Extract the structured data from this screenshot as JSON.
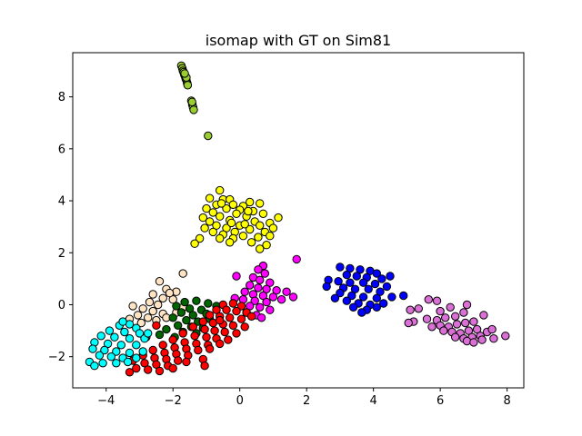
{
  "chart_data": {
    "type": "scatter",
    "title": "isomap with GT on Sim81",
    "xlabel": "",
    "ylabel": "",
    "xlim": [
      -5.0,
      8.5
    ],
    "ylim": [
      -3.2,
      9.7
    ],
    "xticks": [
      -4,
      -2,
      0,
      2,
      4,
      6,
      8
    ],
    "yticks": [
      -2,
      0,
      2,
      4,
      6,
      8
    ],
    "xtick_labels": [
      "−4",
      "−2",
      "0",
      "2",
      "4",
      "6",
      "8"
    ],
    "ytick_labels": [
      "−2",
      "0",
      "2",
      "4",
      "6",
      "8"
    ],
    "grid": false,
    "legend": "none",
    "series": [
      {
        "color": "#9acd32",
        "points": [
          [
            -1.75,
            9.2
          ],
          [
            -1.72,
            9.1
          ],
          [
            -1.7,
            9.0
          ],
          [
            -1.68,
            8.95
          ],
          [
            -1.66,
            8.85
          ],
          [
            -1.64,
            8.8
          ],
          [
            -1.62,
            8.7
          ],
          [
            -1.6,
            8.65
          ],
          [
            -1.58,
            8.55
          ],
          [
            -1.57,
            8.5
          ],
          [
            -1.6,
            8.75
          ],
          [
            -1.56,
            8.45
          ],
          [
            -1.65,
            8.9
          ],
          [
            -1.45,
            7.85
          ],
          [
            -1.42,
            7.7
          ],
          [
            -1.4,
            7.6
          ],
          [
            -1.38,
            7.5
          ],
          [
            -1.43,
            7.8
          ],
          [
            -0.95,
            6.5
          ]
        ]
      },
      {
        "color": "#ffff00",
        "points": [
          [
            -0.6,
            4.4
          ],
          [
            -0.9,
            4.1
          ],
          [
            -0.5,
            4.05
          ],
          [
            -0.3,
            4.05
          ],
          [
            0.6,
            3.9
          ],
          [
            0.3,
            3.95
          ],
          [
            -0.7,
            3.85
          ],
          [
            -0.2,
            3.85
          ],
          [
            0.1,
            3.8
          ],
          [
            -1.0,
            3.7
          ],
          [
            -0.4,
            3.7
          ],
          [
            0.0,
            3.65
          ],
          [
            0.4,
            3.6
          ],
          [
            -0.8,
            3.55
          ],
          [
            -0.1,
            3.5
          ],
          [
            0.7,
            3.5
          ],
          [
            -1.1,
            3.35
          ],
          [
            -0.6,
            3.4
          ],
          [
            0.2,
            3.4
          ],
          [
            1.15,
            3.35
          ],
          [
            -0.9,
            3.2
          ],
          [
            -0.3,
            3.25
          ],
          [
            0.45,
            3.2
          ],
          [
            0.9,
            3.15
          ],
          [
            -0.7,
            3.05
          ],
          [
            0.0,
            3.05
          ],
          [
            0.6,
            3.05
          ],
          [
            -1.05,
            2.95
          ],
          [
            -0.4,
            2.95
          ],
          [
            0.3,
            2.9
          ],
          [
            1.0,
            2.95
          ],
          [
            -0.8,
            2.8
          ],
          [
            -0.15,
            2.8
          ],
          [
            0.75,
            2.8
          ],
          [
            -0.5,
            2.7
          ],
          [
            0.1,
            2.65
          ],
          [
            0.55,
            2.6
          ],
          [
            -0.2,
            2.55
          ],
          [
            0.9,
            2.65
          ],
          [
            -0.6,
            2.55
          ],
          [
            0.35,
            2.4
          ],
          [
            -0.3,
            2.4
          ],
          [
            0.8,
            2.3
          ],
          [
            0.6,
            2.15
          ],
          [
            -1.2,
            2.55
          ],
          [
            -1.35,
            2.35
          ],
          [
            -0.55,
            3.9
          ],
          [
            0.25,
            3.6
          ],
          [
            -0.25,
            3.15
          ],
          [
            0.15,
            3.1
          ]
        ]
      },
      {
        "color": "#0000ff",
        "points": [
          [
            3.0,
            1.45
          ],
          [
            3.3,
            1.4
          ],
          [
            3.6,
            1.35
          ],
          [
            3.9,
            1.3
          ],
          [
            4.1,
            1.2
          ],
          [
            3.2,
            1.15
          ],
          [
            3.5,
            1.1
          ],
          [
            3.8,
            1.05
          ],
          [
            4.25,
            1.0
          ],
          [
            2.65,
            0.95
          ],
          [
            2.95,
            0.9
          ],
          [
            3.3,
            0.85
          ],
          [
            3.7,
            0.85
          ],
          [
            4.05,
            0.8
          ],
          [
            4.4,
            0.7
          ],
          [
            3.1,
            0.65
          ],
          [
            3.45,
            0.6
          ],
          [
            3.85,
            0.6
          ],
          [
            4.2,
            0.5
          ],
          [
            2.6,
            0.7
          ],
          [
            3.0,
            0.45
          ],
          [
            3.35,
            0.35
          ],
          [
            3.7,
            0.3
          ],
          [
            4.1,
            0.25
          ],
          [
            4.55,
            0.3
          ],
          [
            3.2,
            0.15
          ],
          [
            3.55,
            0.05
          ],
          [
            3.9,
            0.0
          ],
          [
            4.3,
            0.05
          ],
          [
            3.4,
            -0.1
          ],
          [
            3.8,
            -0.2
          ],
          [
            4.1,
            -0.1
          ],
          [
            3.65,
            -0.3
          ],
          [
            4.9,
            0.35
          ],
          [
            2.85,
            0.25
          ],
          [
            4.5,
            1.1
          ]
        ]
      },
      {
        "color": "#da70d6",
        "points": [
          [
            5.1,
            -0.2
          ],
          [
            5.35,
            -0.15
          ],
          [
            5.65,
            0.2
          ],
          [
            5.9,
            0.15
          ],
          [
            6.0,
            -0.25
          ],
          [
            6.3,
            -0.1
          ],
          [
            5.6,
            -0.55
          ],
          [
            5.9,
            -0.6
          ],
          [
            6.15,
            -0.5
          ],
          [
            6.45,
            -0.45
          ],
          [
            6.7,
            -0.3
          ],
          [
            5.75,
            -0.85
          ],
          [
            6.0,
            -0.8
          ],
          [
            6.25,
            -0.85
          ],
          [
            6.5,
            -0.75
          ],
          [
            6.75,
            -0.7
          ],
          [
            7.0,
            -0.65
          ],
          [
            6.1,
            -1.0
          ],
          [
            6.35,
            -1.05
          ],
          [
            6.6,
            -1.1
          ],
          [
            6.85,
            -1.0
          ],
          [
            7.1,
            -0.95
          ],
          [
            6.45,
            -1.25
          ],
          [
            6.7,
            -1.3
          ],
          [
            6.95,
            -1.25
          ],
          [
            7.2,
            -1.2
          ],
          [
            7.4,
            -1.05
          ],
          [
            7.55,
            -0.95
          ],
          [
            6.8,
            -1.4
          ],
          [
            7.0,
            -1.45
          ],
          [
            7.25,
            -1.35
          ],
          [
            7.95,
            -1.2
          ],
          [
            7.6,
            -1.3
          ],
          [
            5.2,
            -0.65
          ],
          [
            5.05,
            -0.7
          ],
          [
            6.8,
            0.0
          ],
          [
            7.3,
            -0.4
          ]
        ]
      },
      {
        "color": "#ff00ff",
        "points": [
          [
            0.7,
            1.5
          ],
          [
            0.55,
            1.35
          ],
          [
            0.75,
            1.2
          ],
          [
            1.7,
            1.75
          ],
          [
            -0.1,
            1.1
          ],
          [
            0.4,
            1.05
          ],
          [
            0.6,
            0.95
          ],
          [
            0.9,
            0.85
          ],
          [
            0.3,
            0.75
          ],
          [
            0.55,
            0.65
          ],
          [
            0.8,
            0.6
          ],
          [
            1.1,
            0.55
          ],
          [
            1.4,
            0.5
          ],
          [
            0.15,
            0.5
          ],
          [
            0.4,
            0.4
          ],
          [
            0.7,
            0.35
          ],
          [
            1.0,
            0.3
          ],
          [
            1.6,
            0.3
          ],
          [
            0.1,
            0.2
          ],
          [
            0.45,
            0.15
          ],
          [
            0.8,
            0.1
          ],
          [
            1.25,
            0.2
          ],
          [
            0.3,
            -0.05
          ],
          [
            0.6,
            -0.1
          ],
          [
            0.9,
            -0.2
          ],
          [
            0.2,
            -0.3
          ],
          [
            0.5,
            -0.4
          ],
          [
            -0.15,
            0.25
          ],
          [
            0.65,
            -0.5
          ]
        ]
      },
      {
        "color": "#ffe4c4",
        "points": [
          [
            -1.7,
            1.2
          ],
          [
            -2.4,
            0.9
          ],
          [
            -2.2,
            0.6
          ],
          [
            -1.9,
            0.5
          ],
          [
            -2.6,
            0.4
          ],
          [
            -2.3,
            0.25
          ],
          [
            -2.0,
            0.2
          ],
          [
            -2.7,
            0.1
          ],
          [
            -2.45,
            0.0
          ],
          [
            -3.2,
            -0.05
          ],
          [
            -2.9,
            -0.15
          ],
          [
            -2.6,
            -0.25
          ],
          [
            -2.3,
            -0.35
          ],
          [
            -3.05,
            -0.4
          ],
          [
            -2.75,
            -0.5
          ],
          [
            -2.5,
            -0.6
          ],
          [
            -2.2,
            -0.5
          ],
          [
            -3.3,
            -0.55
          ],
          [
            -2.95,
            -0.7
          ],
          [
            -1.7,
            -0.1
          ],
          [
            -1.9,
            -0.3
          ],
          [
            -2.1,
            0.45
          ]
        ]
      },
      {
        "color": "#006400",
        "points": [
          [
            -1.65,
            0.1
          ],
          [
            -1.3,
            0.15
          ],
          [
            -1.9,
            -0.05
          ],
          [
            -1.5,
            -0.15
          ],
          [
            -1.15,
            -0.2
          ],
          [
            -1.75,
            -0.3
          ],
          [
            -1.4,
            -0.4
          ],
          [
            -1.0,
            -0.35
          ],
          [
            -2.0,
            -0.5
          ],
          [
            -1.6,
            -0.6
          ],
          [
            -1.25,
            -0.65
          ],
          [
            -0.9,
            -0.55
          ],
          [
            -1.85,
            -0.8
          ],
          [
            -1.45,
            -0.85
          ],
          [
            -1.1,
            -0.9
          ],
          [
            -2.2,
            -0.95
          ],
          [
            -1.7,
            -1.05
          ],
          [
            -1.3,
            -1.1
          ],
          [
            -2.4,
            -1.15
          ],
          [
            -1.95,
            -1.25
          ],
          [
            -0.95,
            0.05
          ],
          [
            -0.7,
            -0.05
          ]
        ]
      },
      {
        "color": "#ff0000",
        "points": [
          [
            -0.5,
            0.0
          ],
          [
            -0.2,
            0.05
          ],
          [
            0.05,
            -0.05
          ],
          [
            -0.7,
            -0.2
          ],
          [
            -0.4,
            -0.2
          ],
          [
            -0.1,
            -0.25
          ],
          [
            0.2,
            -0.3
          ],
          [
            -0.9,
            -0.4
          ],
          [
            -0.6,
            -0.45
          ],
          [
            -0.3,
            -0.5
          ],
          [
            0.05,
            -0.55
          ],
          [
            0.35,
            -0.45
          ],
          [
            -1.1,
            -0.65
          ],
          [
            -0.8,
            -0.7
          ],
          [
            -0.5,
            -0.75
          ],
          [
            -0.2,
            -0.8
          ],
          [
            0.15,
            -0.85
          ],
          [
            -1.4,
            -0.85
          ],
          [
            -1.05,
            -0.95
          ],
          [
            -0.75,
            -1.0
          ],
          [
            -0.45,
            -1.05
          ],
          [
            -0.1,
            -1.1
          ],
          [
            -1.7,
            -1.1
          ],
          [
            -1.35,
            -1.2
          ],
          [
            -1.0,
            -1.25
          ],
          [
            -0.7,
            -1.3
          ],
          [
            -0.35,
            -1.35
          ],
          [
            -2.0,
            -1.35
          ],
          [
            -1.65,
            -1.45
          ],
          [
            -1.3,
            -1.5
          ],
          [
            -0.95,
            -1.55
          ],
          [
            -0.6,
            -1.5
          ],
          [
            -2.3,
            -1.55
          ],
          [
            -1.95,
            -1.65
          ],
          [
            -1.6,
            -1.7
          ],
          [
            -1.25,
            -1.75
          ],
          [
            -0.9,
            -1.7
          ],
          [
            -2.6,
            -1.75
          ],
          [
            -2.25,
            -1.85
          ],
          [
            -1.9,
            -1.9
          ],
          [
            -1.55,
            -1.95
          ],
          [
            -2.9,
            -1.95
          ],
          [
            -2.55,
            -2.05
          ],
          [
            -2.2,
            -2.1
          ],
          [
            -1.85,
            -2.15
          ],
          [
            -3.2,
            -2.15
          ],
          [
            -2.85,
            -2.25
          ],
          [
            -2.5,
            -2.3
          ],
          [
            -2.15,
            -2.35
          ],
          [
            -3.1,
            -2.45
          ],
          [
            -2.75,
            -2.5
          ],
          [
            -3.3,
            -2.6
          ],
          [
            -2.4,
            -2.55
          ],
          [
            -2.0,
            -2.45
          ],
          [
            -1.1,
            -2.1
          ],
          [
            -1.05,
            -2.35
          ],
          [
            -1.6,
            -2.2
          ],
          [
            -2.5,
            -0.8
          ],
          [
            -2.8,
            -1.25
          ],
          [
            -0.6,
            -0.6
          ]
        ]
      },
      {
        "color": "#00ffff",
        "points": [
          [
            -3.3,
            -0.75
          ],
          [
            -3.6,
            -0.8
          ],
          [
            -3.1,
            -0.9
          ],
          [
            -3.9,
            -1.0
          ],
          [
            -3.45,
            -1.05
          ],
          [
            -3.0,
            -1.1
          ],
          [
            -4.15,
            -1.2
          ],
          [
            -3.75,
            -1.25
          ],
          [
            -3.3,
            -1.3
          ],
          [
            -2.85,
            -1.3
          ],
          [
            -4.35,
            -1.45
          ],
          [
            -3.95,
            -1.5
          ],
          [
            -3.55,
            -1.55
          ],
          [
            -3.1,
            -1.55
          ],
          [
            -4.4,
            -1.7
          ],
          [
            -4.05,
            -1.75
          ],
          [
            -3.7,
            -1.8
          ],
          [
            -3.3,
            -1.85
          ],
          [
            -2.9,
            -1.8
          ],
          [
            -4.2,
            -1.95
          ],
          [
            -3.85,
            -2.0
          ],
          [
            -3.5,
            -2.05
          ],
          [
            -3.1,
            -2.05
          ],
          [
            -4.5,
            -2.2
          ],
          [
            -4.1,
            -2.25
          ],
          [
            -3.7,
            -2.25
          ],
          [
            -4.35,
            -2.35
          ],
          [
            -3.35,
            -2.2
          ],
          [
            -2.75,
            -1.1
          ],
          [
            -3.5,
            -0.65
          ]
        ]
      }
    ]
  }
}
